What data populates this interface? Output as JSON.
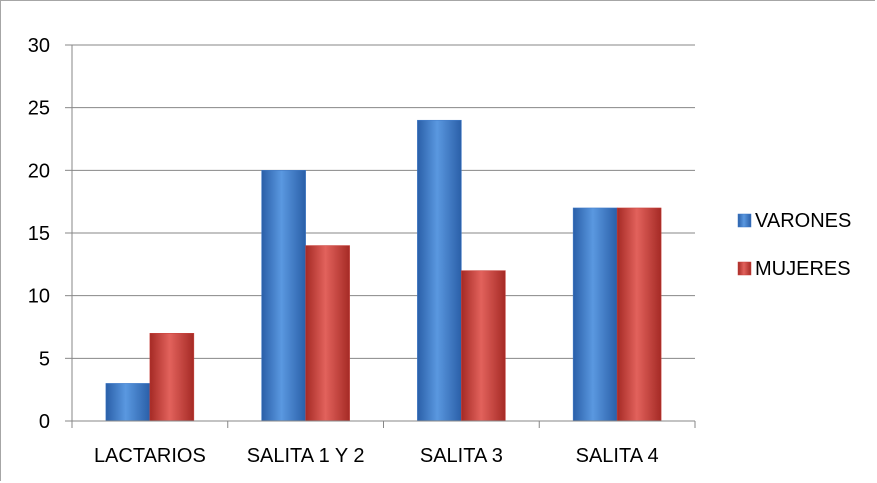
{
  "chart_data": {
    "type": "bar",
    "categories": [
      "LACTARIOS",
      "SALITA 1 Y 2",
      "SALITA 3",
      "SALITA 4"
    ],
    "series": [
      {
        "name": "VARONES",
        "values": [
          3,
          20,
          24,
          17
        ],
        "color": "#3c78c8"
      },
      {
        "name": "MUJERES",
        "values": [
          7,
          14,
          12,
          17
        ],
        "color": "#c8403a"
      }
    ],
    "ylim": [
      0,
      30
    ],
    "yticks": [
      0,
      5,
      10,
      15,
      20,
      25,
      30
    ],
    "grid": true,
    "legend": "right",
    "title": "",
    "xlabel": "",
    "ylabel": ""
  }
}
